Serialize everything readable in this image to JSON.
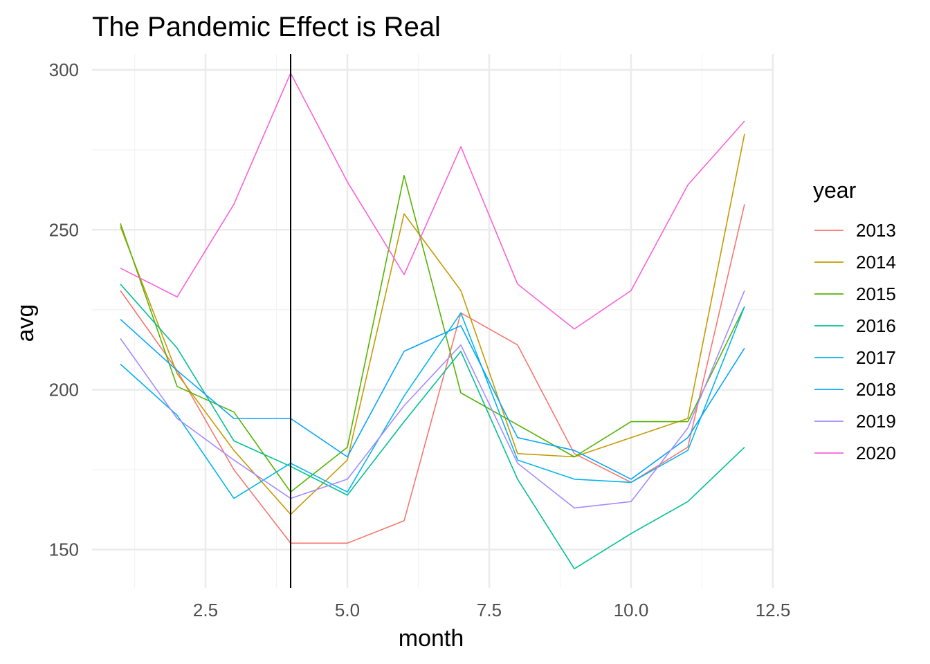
{
  "chart_data": {
    "type": "line",
    "title": "The Pandemic Effect is Real",
    "xlabel": "month",
    "ylabel": "avg",
    "xlim": [
      0.5,
      12.5
    ],
    "ylim": [
      138,
      305
    ],
    "x_ticks": [
      2.5,
      5.0,
      7.5,
      10.0,
      12.5
    ],
    "x_tick_labels": [
      "2.5",
      "5.0",
      "7.5",
      "10.0",
      "12.5"
    ],
    "y_ticks": [
      150,
      200,
      250,
      300
    ],
    "y_tick_labels": [
      "150",
      "200",
      "250",
      "300"
    ],
    "grid": true,
    "vline_x": 4,
    "legend": {
      "title": "year",
      "placement": "right"
    },
    "x": [
      1,
      2,
      3,
      4,
      5,
      6,
      7,
      8,
      9,
      10,
      11,
      12
    ],
    "series": [
      {
        "name": "2013",
        "color": "#F8766D",
        "values": [
          231,
          206,
          175,
          152,
          152,
          159,
          224,
          214,
          180,
          171,
          182,
          258
        ]
      },
      {
        "name": "2014",
        "color": "#C49A00",
        "values": [
          251,
          205,
          181,
          161,
          178,
          255,
          231,
          180,
          179,
          185,
          191,
          280
        ]
      },
      {
        "name": "2015",
        "color": "#53B400",
        "values": [
          252,
          201,
          193,
          168,
          182,
          267,
          199,
          189,
          179,
          190,
          190,
          226
        ]
      },
      {
        "name": "2016",
        "color": "#00C094",
        "values": [
          233,
          213,
          184,
          176,
          167,
          190,
          212,
          172,
          144,
          155,
          165,
          182
        ]
      },
      {
        "name": "2017",
        "color": "#00B6EB",
        "values": [
          208,
          192,
          166,
          177,
          168,
          198,
          224,
          178,
          172,
          171,
          181,
          226
        ]
      },
      {
        "name": "2018",
        "color": "#06A4FF",
        "values": [
          222,
          206,
          191,
          191,
          179,
          212,
          220,
          185,
          181,
          172,
          185,
          213
        ]
      },
      {
        "name": "2019",
        "color": "#A58AFF",
        "values": [
          216,
          191,
          178,
          166,
          172,
          195,
          214,
          177,
          163,
          165,
          188,
          231
        ]
      },
      {
        "name": "2020",
        "color": "#FB61D7",
        "values": [
          238,
          229,
          258,
          299,
          265,
          236,
          276,
          233,
          219,
          231,
          264,
          284
        ]
      }
    ]
  }
}
